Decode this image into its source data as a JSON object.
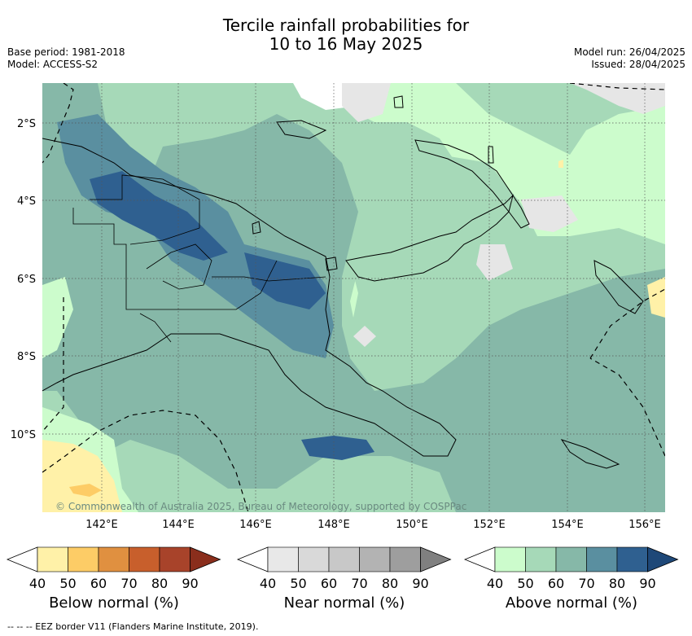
{
  "title": {
    "line1": "Tercile rainfall probabilities for",
    "line2": "10 to 16 May 2025"
  },
  "meta_left": {
    "base_period": "Base period: 1981-2018",
    "model": "Model: ACCESS-S2"
  },
  "meta_right": {
    "model_run": "Model run: 26/04/2025",
    "issued": "Issued: 28/04/2025"
  },
  "map": {
    "latitude_labels": [
      "2°S",
      "4°S",
      "6°S",
      "8°S",
      "10°S"
    ],
    "longitude_labels": [
      "142°E",
      "144°E",
      "146°E",
      "148°E",
      "150°E",
      "152°E",
      "154°E",
      "156°E"
    ],
    "copyright": "© Commonwealth of Australia 2025, Bureau of Meteorology, supported by COSPPac"
  },
  "colorbars": [
    {
      "label": "Below normal (%)",
      "ticks": [
        "40",
        "50",
        "60",
        "70",
        "80",
        "90"
      ],
      "colors": [
        "#fff1a8",
        "#fdcc66",
        "#e09040",
        "#c85f2c",
        "#a8432a",
        "#8a2e1c"
      ]
    },
    {
      "label": "Near normal (%)",
      "ticks": [
        "40",
        "50",
        "60",
        "70",
        "80",
        "90"
      ],
      "colors": [
        "#e8e8e8",
        "#d9d9d9",
        "#c8c8c8",
        "#b3b3b3",
        "#9e9e9e",
        "#808080"
      ]
    },
    {
      "label": "Above normal (%)",
      "ticks": [
        "40",
        "50",
        "60",
        "70",
        "80",
        "90"
      ],
      "colors": [
        "#ccfccc",
        "#a6d9b8",
        "#86b8a8",
        "#5a8fa0",
        "#2f6090",
        "#1e4878"
      ]
    }
  ],
  "footer": {
    "eez_note": "--  --  -- EEZ border V11 (Flanders Marine Institute, 2019)."
  }
}
